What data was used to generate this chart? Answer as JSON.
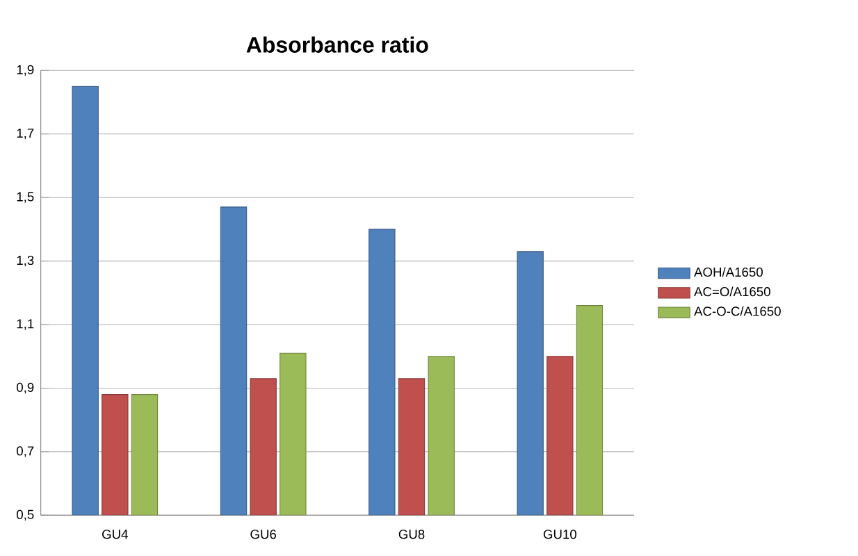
{
  "chart_data": {
    "type": "bar",
    "title": "Absorbance ratio",
    "categories": [
      "GU4",
      "GU6",
      "GU8",
      "GU10"
    ],
    "series": [
      {
        "name": "AOH/A1650",
        "color": "#4f81bd",
        "values": [
          1.85,
          1.47,
          1.4,
          1.33
        ]
      },
      {
        "name": "AC=O/A1650",
        "color": "#c0504d",
        "values": [
          0.88,
          0.93,
          0.93,
          1.0
        ]
      },
      {
        "name": "AC-O-C/A1650",
        "color": "#9bbb59",
        "values": [
          0.88,
          1.01,
          1.0,
          1.16
        ]
      }
    ],
    "ylim": [
      0.5,
      1.9
    ],
    "yticks": [
      {
        "value": 0.5,
        "label": "0,5"
      },
      {
        "value": 0.7,
        "label": "0,7"
      },
      {
        "value": 0.9,
        "label": "0,9"
      },
      {
        "value": 1.1,
        "label": "1,1"
      },
      {
        "value": 1.3,
        "label": "1,3"
      },
      {
        "value": 1.5,
        "label": "1,5"
      },
      {
        "value": 1.7,
        "label": "1,7"
      },
      {
        "value": 1.9,
        "label": "1,9"
      }
    ],
    "grid": "y",
    "legend": "right"
  }
}
